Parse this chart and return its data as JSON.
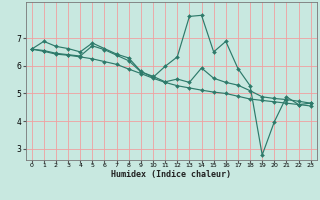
{
  "xlabel": "Humidex (Indice chaleur)",
  "bg_color": "#c8e8e0",
  "line_color": "#2d7a6a",
  "grid_color": "#f0a0a0",
  "xlim": [
    -0.5,
    23.5
  ],
  "ylim": [
    2.6,
    8.3
  ],
  "yticks": [
    3,
    4,
    5,
    6,
    7
  ],
  "xticks": [
    0,
    1,
    2,
    3,
    4,
    5,
    6,
    7,
    8,
    9,
    10,
    11,
    12,
    13,
    14,
    15,
    16,
    17,
    18,
    19,
    20,
    21,
    22,
    23
  ],
  "series1_x": [
    0,
    1,
    2,
    3,
    4,
    5,
    6,
    7,
    8,
    9,
    10,
    11,
    12,
    13,
    14,
    15,
    16,
    17,
    18,
    19,
    20,
    21,
    22,
    23
  ],
  "series1_y": [
    6.6,
    6.88,
    6.7,
    6.62,
    6.5,
    6.82,
    6.62,
    6.42,
    6.28,
    5.8,
    5.58,
    5.98,
    6.32,
    7.78,
    7.82,
    6.5,
    6.88,
    5.9,
    5.28,
    2.78,
    3.98,
    4.88,
    4.6,
    4.65
  ],
  "series2_x": [
    0,
    1,
    2,
    3,
    4,
    5,
    6,
    7,
    8,
    9,
    10,
    11,
    12,
    13,
    14,
    15,
    16,
    17,
    18,
    19,
    20,
    21,
    22,
    23
  ],
  "series2_y": [
    6.6,
    6.55,
    6.45,
    6.4,
    6.35,
    6.72,
    6.58,
    6.38,
    6.18,
    5.78,
    5.62,
    5.42,
    5.52,
    5.4,
    5.92,
    5.55,
    5.4,
    5.3,
    5.1,
    4.88,
    4.82,
    4.78,
    4.72,
    4.65
  ],
  "series3_x": [
    0,
    1,
    2,
    3,
    4,
    5,
    6,
    7,
    8,
    9,
    10,
    11,
    12,
    13,
    14,
    15,
    16,
    17,
    18,
    19,
    20,
    21,
    22,
    23
  ],
  "series3_y": [
    6.6,
    6.52,
    6.42,
    6.38,
    6.32,
    6.25,
    6.15,
    6.05,
    5.88,
    5.72,
    5.55,
    5.4,
    5.28,
    5.2,
    5.12,
    5.05,
    5.0,
    4.9,
    4.8,
    4.75,
    4.7,
    4.65,
    4.6,
    4.55
  ]
}
